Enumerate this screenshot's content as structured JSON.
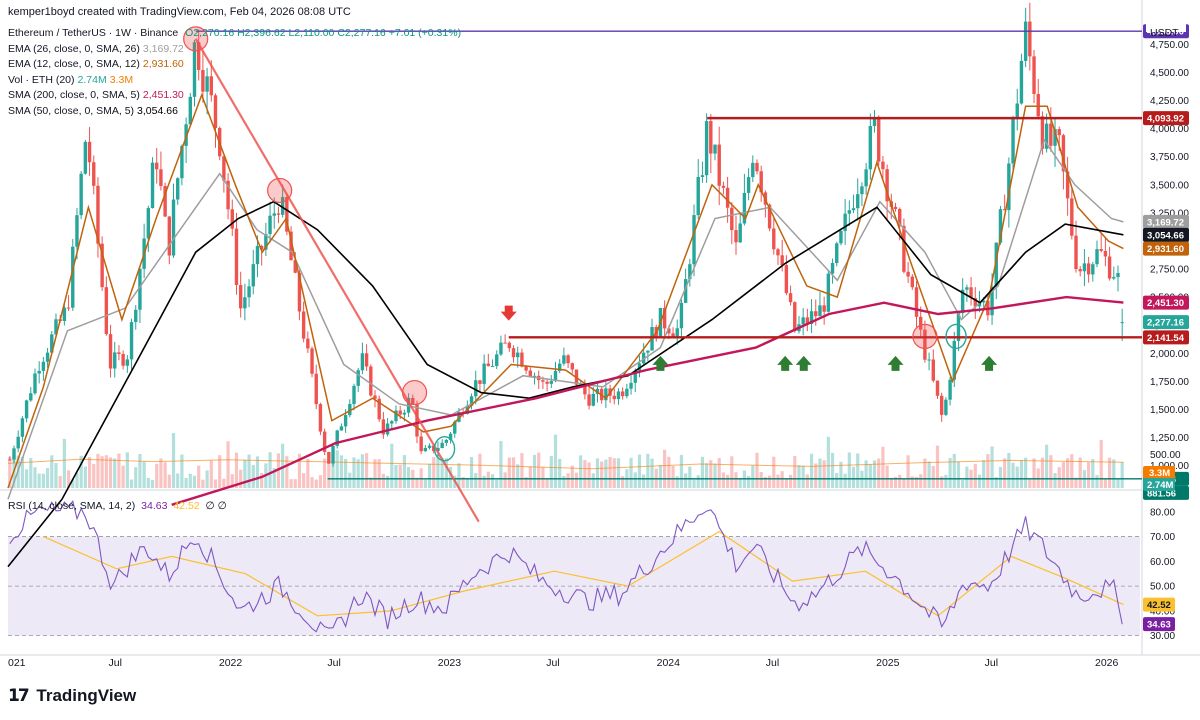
{
  "header": {
    "created_by": "kemper1boyd created with TradingView.com, Feb 04, 2026 08:08 UTC"
  },
  "symbol": {
    "title": "Ethereum / TetherUS · 1W · Binance",
    "ohlc": "O2,270.16 H2,396.62 L2,110.00 C2,277.16 +7.01 (+0.31%)",
    "currency": "USDT"
  },
  "indicators": [
    {
      "label": "EMA (26, close, 0, SMA, 26)",
      "value": "3,169.72",
      "color": "#9e9e9e"
    },
    {
      "label": "EMA (12, close, 0, SMA, 12)",
      "value": "2,931.60",
      "color": "#c0630a"
    },
    {
      "label": "Vol · ETH (20)",
      "value": "2.74M",
      "value2": "3.3M",
      "color": "#26a69a",
      "color2": "#f57c00"
    },
    {
      "label": "SMA (200, close, 0, SMA, 5)",
      "value": "2,451.30",
      "color": "#c2185b"
    },
    {
      "label": "SMA (50, close, 0, SMA, 5)",
      "value": "3,054.66",
      "color": "#000000"
    }
  ],
  "rsi_legend": {
    "label": "RSI (14, close, SMA, 14, 2)",
    "value": "34.63",
    "value2": "42.52",
    "tail": "∅ ∅"
  },
  "footer": {
    "brand": "TradingView"
  },
  "chart_data": {
    "type": "candlestick",
    "title": "Ethereum / TetherUS · 1W · Binance",
    "price_axis": {
      "ticks": [
        4750,
        4500,
        4250,
        4000,
        3750,
        3500,
        3250,
        3000,
        2750,
        2500,
        2250,
        2000,
        1750,
        1500,
        1250,
        1000
      ],
      "tick_labels": [
        "4,750.00",
        "4,500.00",
        "4,250.00",
        "4,000.00",
        "3,750.00",
        "3,500.00",
        "3,250.00",
        "3,000.00",
        "2,750.00",
        "2,500.00",
        "2,250.00",
        "2,000.00",
        "1,750.00",
        "1,500.00",
        "1,250.00",
        "1,000.00"
      ],
      "range": [
        800,
        4950
      ]
    },
    "volume_axis": {
      "ticks": [
        500
      ],
      "tick_labels": [
        "500.00"
      ]
    },
    "rsi_axis": {
      "ticks": [
        80,
        70,
        60,
        50,
        40,
        30
      ],
      "tick_labels": [
        "80.00",
        "70.00",
        "60.00",
        "50.00",
        "40.00",
        "30.00"
      ],
      "range": [
        25,
        88
      ],
      "band": [
        30,
        70
      ]
    },
    "time_axis": {
      "labels": [
        "021",
        "Jul",
        "2022",
        "Jul",
        "2023",
        "Jul",
        "2024",
        "Jul",
        "2025",
        "Jul",
        "2026"
      ],
      "dates": [
        "2021-01-01",
        "2021-07-01",
        "2022-01-01",
        "2022-07-01",
        "2023-01-01",
        "2023-07-01",
        "2024-01-01",
        "2024-07-01",
        "2025-01-01",
        "2025-07-01",
        "2026-01-01"
      ]
    },
    "price_keypoints": [
      [
        "2021-01-01",
        1000
      ],
      [
        "2021-02-20",
        1900
      ],
      [
        "2021-04-10",
        2400
      ],
      [
        "2021-05-12",
        4000
      ],
      [
        "2021-06-20",
        1900
      ],
      [
        "2021-07-20",
        2000
      ],
      [
        "2021-09-05",
        3800
      ],
      [
        "2021-09-25",
        2900
      ],
      [
        "2021-11-10",
        4800
      ],
      [
        "2021-12-20",
        3900
      ],
      [
        "2022-01-24",
        2400
      ],
      [
        "2022-03-30",
        3400
      ],
      [
        "2022-05-15",
        2000
      ],
      [
        "2022-06-18",
        1000
      ],
      [
        "2022-08-14",
        1950
      ],
      [
        "2022-09-20",
        1300
      ],
      [
        "2022-11-05",
        1600
      ],
      [
        "2022-11-20",
        1100
      ],
      [
        "2022-12-30",
        1200
      ],
      [
        "2023-02-15",
        1700
      ],
      [
        "2023-04-16",
        2100
      ],
      [
        "2023-06-15",
        1700
      ],
      [
        "2023-07-15",
        1950
      ],
      [
        "2023-08-25",
        1600
      ],
      [
        "2023-10-20",
        1650
      ],
      [
        "2023-12-25",
        2300
      ],
      [
        "2024-01-25",
        2200
      ],
      [
        "2024-03-12",
        4000
      ],
      [
        "2024-04-30",
        2900
      ],
      [
        "2024-05-28",
        3850
      ],
      [
        "2024-08-05",
        2200
      ],
      [
        "2024-09-20",
        2400
      ],
      [
        "2024-11-10",
        3400
      ],
      [
        "2024-12-16",
        4000
      ],
      [
        "2025-01-15",
        3300
      ],
      [
        "2025-03-01",
        2200
      ],
      [
        "2025-04-09",
        1400
      ],
      [
        "2025-05-13",
        2600
      ],
      [
        "2025-06-25",
        2400
      ],
      [
        "2025-07-28",
        3700
      ],
      [
        "2025-08-24",
        4868
      ],
      [
        "2025-09-25",
        3900
      ],
      [
        "2025-10-20",
        3800
      ],
      [
        "2025-11-20",
        2750
      ],
      [
        "2025-12-25",
        2900
      ],
      [
        "2026-01-25",
        2700
      ],
      [
        "2026-02-04",
        2277.16
      ]
    ],
    "ema12": [
      [
        "2021-01-01",
        800
      ],
      [
        "2021-03-01",
        1700
      ],
      [
        "2021-05-15",
        3300
      ],
      [
        "2021-07-10",
        2300
      ],
      [
        "2021-09-05",
        3200
      ],
      [
        "2021-11-20",
        4300
      ],
      [
        "2022-01-15",
        3500
      ],
      [
        "2022-03-01",
        2900
      ],
      [
        "2022-04-10",
        3200
      ],
      [
        "2022-06-25",
        1400
      ],
      [
        "2022-09-01",
        1600
      ],
      [
        "2022-11-25",
        1300
      ],
      [
        "2023-01-10",
        1350
      ],
      [
        "2023-04-20",
        1900
      ],
      [
        "2023-07-20",
        1850
      ],
      [
        "2023-09-25",
        1600
      ],
      [
        "2023-12-20",
        2200
      ],
      [
        "2024-03-20",
        3500
      ],
      [
        "2024-05-15",
        3200
      ],
      [
        "2024-06-05",
        3500
      ],
      [
        "2024-08-25",
        2600
      ],
      [
        "2024-10-15",
        2500
      ],
      [
        "2024-12-20",
        3700
      ],
      [
        "2025-02-15",
        2800
      ],
      [
        "2025-04-25",
        1750
      ],
      [
        "2025-06-25",
        2500
      ],
      [
        "2025-08-25",
        4200
      ],
      [
        "2025-09-30",
        4200
      ],
      [
        "2025-11-20",
        3300
      ],
      [
        "2026-01-10",
        3000
      ],
      [
        "2026-02-04",
        2931.6
      ]
    ],
    "ema26": [
      [
        "2021-01-01",
        700
      ],
      [
        "2021-04-10",
        2200
      ],
      [
        "2021-07-15",
        2400
      ],
      [
        "2021-10-15",
        3100
      ],
      [
        "2021-12-20",
        3600
      ],
      [
        "2022-02-20",
        3100
      ],
      [
        "2022-04-20",
        2900
      ],
      [
        "2022-07-15",
        1900
      ],
      [
        "2022-10-15",
        1550
      ],
      [
        "2023-01-10",
        1450
      ],
      [
        "2023-05-10",
        1800
      ],
      [
        "2023-09-20",
        1700
      ],
      [
        "2023-12-25",
        2050
      ],
      [
        "2024-03-25",
        3200
      ],
      [
        "2024-06-25",
        3300
      ],
      [
        "2024-10-15",
        2650
      ],
      [
        "2024-12-25",
        3350
      ],
      [
        "2025-03-10",
        2900
      ],
      [
        "2025-05-10",
        2300
      ],
      [
        "2025-07-10",
        2600
      ],
      [
        "2025-09-25",
        3900
      ],
      [
        "2025-11-15",
        3500
      ],
      [
        "2026-01-15",
        3200
      ],
      [
        "2026-02-04",
        3169.72
      ]
    ],
    "sma50": [
      [
        "2021-01-01",
        100
      ],
      [
        "2021-04-01",
        700
      ],
      [
        "2021-08-01",
        1900
      ],
      [
        "2021-11-10",
        2900
      ],
      [
        "2022-01-20",
        3200
      ],
      [
        "2022-03-20",
        3350
      ],
      [
        "2022-06-01",
        3100
      ],
      [
        "2022-09-01",
        2600
      ],
      [
        "2022-12-01",
        1900
      ],
      [
        "2023-03-01",
        1650
      ],
      [
        "2023-05-20",
        1600
      ],
      [
        "2023-08-01",
        1700
      ],
      [
        "2023-11-01",
        1800
      ],
      [
        "2024-03-20",
        2300
      ],
      [
        "2024-07-20",
        2800
      ],
      [
        "2024-12-20",
        3300
      ],
      [
        "2025-03-20",
        2700
      ],
      [
        "2025-06-10",
        2450
      ],
      [
        "2025-08-25",
        2900
      ],
      [
        "2025-10-30",
        3150
      ],
      [
        "2026-02-04",
        3054.66
      ]
    ],
    "sma200": [
      [
        "2021-10-01",
        650
      ],
      [
        "2022-03-01",
        900
      ],
      [
        "2022-07-01",
        1200
      ],
      [
        "2022-12-01",
        1400
      ],
      [
        "2023-06-01",
        1600
      ],
      [
        "2023-12-01",
        1850
      ],
      [
        "2024-06-01",
        2050
      ],
      [
        "2024-10-01",
        2350
      ],
      [
        "2025-01-01",
        2450
      ],
      [
        "2025-04-01",
        2350
      ],
      [
        "2025-07-01",
        2400
      ],
      [
        "2025-11-01",
        2500
      ],
      [
        "2026-02-04",
        2451.3
      ]
    ],
    "volume_sma20": [
      [
        "2021-01-01",
        410
      ],
      [
        "2021-05-01",
        480
      ],
      [
        "2021-09-01",
        440
      ],
      [
        "2022-01-01",
        470
      ],
      [
        "2022-06-01",
        440
      ],
      [
        "2022-10-01",
        410
      ],
      [
        "2023-03-01",
        380
      ],
      [
        "2023-09-01",
        320
      ],
      [
        "2024-03-01",
        400
      ],
      [
        "2024-09-01",
        360
      ],
      [
        "2025-03-01",
        420
      ],
      [
        "2025-08-01",
        460
      ],
      [
        "2026-02-04",
        430
      ]
    ],
    "rsi": [
      [
        "2021-01-01",
        70
      ],
      [
        "2021-02-20",
        80
      ],
      [
        "2021-05-12",
        80
      ],
      [
        "2021-06-25",
        50
      ],
      [
        "2021-07-25",
        60
      ],
      [
        "2021-08-20",
        66
      ],
      [
        "2021-09-25",
        54
      ],
      [
        "2021-11-10",
        72
      ],
      [
        "2021-12-20",
        55
      ],
      [
        "2022-01-24",
        40
      ],
      [
        "2022-03-30",
        50
      ],
      [
        "2022-05-15",
        38
      ],
      [
        "2022-06-18",
        28
      ],
      [
        "2022-08-14",
        47
      ],
      [
        "2022-09-25",
        37
      ],
      [
        "2022-11-10",
        45
      ],
      [
        "2022-12-30",
        41
      ],
      [
        "2023-02-15",
        55
      ],
      [
        "2023-04-16",
        64
      ],
      [
        "2023-06-10",
        52
      ],
      [
        "2023-08-25",
        44
      ],
      [
        "2023-10-20",
        47
      ],
      [
        "2023-12-25",
        64
      ],
      [
        "2024-03-12",
        84
      ],
      [
        "2024-05-01",
        58
      ],
      [
        "2024-05-28",
        66
      ],
      [
        "2024-08-05",
        43
      ],
      [
        "2024-09-10",
        47
      ],
      [
        "2024-11-25",
        65
      ],
      [
        "2025-01-15",
        55
      ],
      [
        "2025-04-09",
        33
      ],
      [
        "2025-05-15",
        52
      ],
      [
        "2025-06-25",
        50
      ],
      [
        "2025-08-24",
        74
      ],
      [
        "2025-09-25",
        65
      ],
      [
        "2025-11-20",
        46
      ],
      [
        "2025-12-25",
        49
      ],
      [
        "2026-01-20",
        48
      ],
      [
        "2026-02-04",
        34.63
      ]
    ],
    "rsi_sma": [
      [
        "2021-03-01",
        70
      ],
      [
        "2021-07-01",
        57
      ],
      [
        "2021-10-01",
        62
      ],
      [
        "2022-02-01",
        55
      ],
      [
        "2022-06-01",
        38
      ],
      [
        "2022-10-01",
        40
      ],
      [
        "2023-02-01",
        48
      ],
      [
        "2023-07-01",
        56
      ],
      [
        "2023-11-01",
        50
      ],
      [
        "2024-04-01",
        72
      ],
      [
        "2024-08-01",
        52
      ],
      [
        "2024-12-01",
        56
      ],
      [
        "2025-04-01",
        38
      ],
      [
        "2025-08-01",
        62
      ],
      [
        "2025-11-01",
        53
      ],
      [
        "2026-02-04",
        42.52
      ]
    ],
    "horizontal_levels": [
      {
        "price": 4868,
        "color": "#5e35b1",
        "label": "4,868.00",
        "from": "2021-11-10"
      },
      {
        "price": 4093.92,
        "color": "#b71c1c",
        "label": "4,093.92",
        "from": "2024-03-12"
      },
      {
        "price": 2141.54,
        "color": "#b71c1c",
        "label": "2,141.54",
        "from": "2023-04-16"
      },
      {
        "price": 881.56,
        "color": "#00796b",
        "label": "881.56",
        "label2": "881.56",
        "from": "2022-06-18"
      }
    ],
    "price_labels": [
      {
        "price": 3169.72,
        "text": "3,169.72",
        "bg": "#9e9e9e"
      },
      {
        "price": 3054.66,
        "text": "3,054.66",
        "bg": "#131722"
      },
      {
        "price": 2931.6,
        "text": "2,931.60",
        "bg": "#c0630a"
      },
      {
        "price": 2451.3,
        "text": "2,451.30",
        "bg": "#c2185b"
      },
      {
        "price": 2277.16,
        "text": "2,277.16",
        "bg": "#26a69a"
      }
    ],
    "trendline": {
      "from": [
        "2021-11-10",
        4800
      ],
      "to": [
        "2023-02-25",
        500
      ],
      "color": "#ef5350"
    },
    "circles_red": [
      [
        "2021-11-10",
        4800
      ],
      [
        "2022-03-30",
        3450
      ],
      [
        "2022-11-10",
        1650
      ],
      [
        "2025-03-10",
        2150
      ]
    ],
    "circles_green": [
      [
        "2022-12-30",
        1150
      ],
      [
        "2025-05-01",
        2150
      ]
    ],
    "arrows_down": [
      [
        "2023-04-16",
        2300
      ]
    ],
    "arrows_up": [
      [
        "2023-12-25",
        1950
      ],
      [
        "2024-07-20",
        1950
      ],
      [
        "2024-08-20",
        1950
      ],
      [
        "2025-01-20",
        1950
      ],
      [
        "2025-06-25",
        1950
      ]
    ]
  }
}
